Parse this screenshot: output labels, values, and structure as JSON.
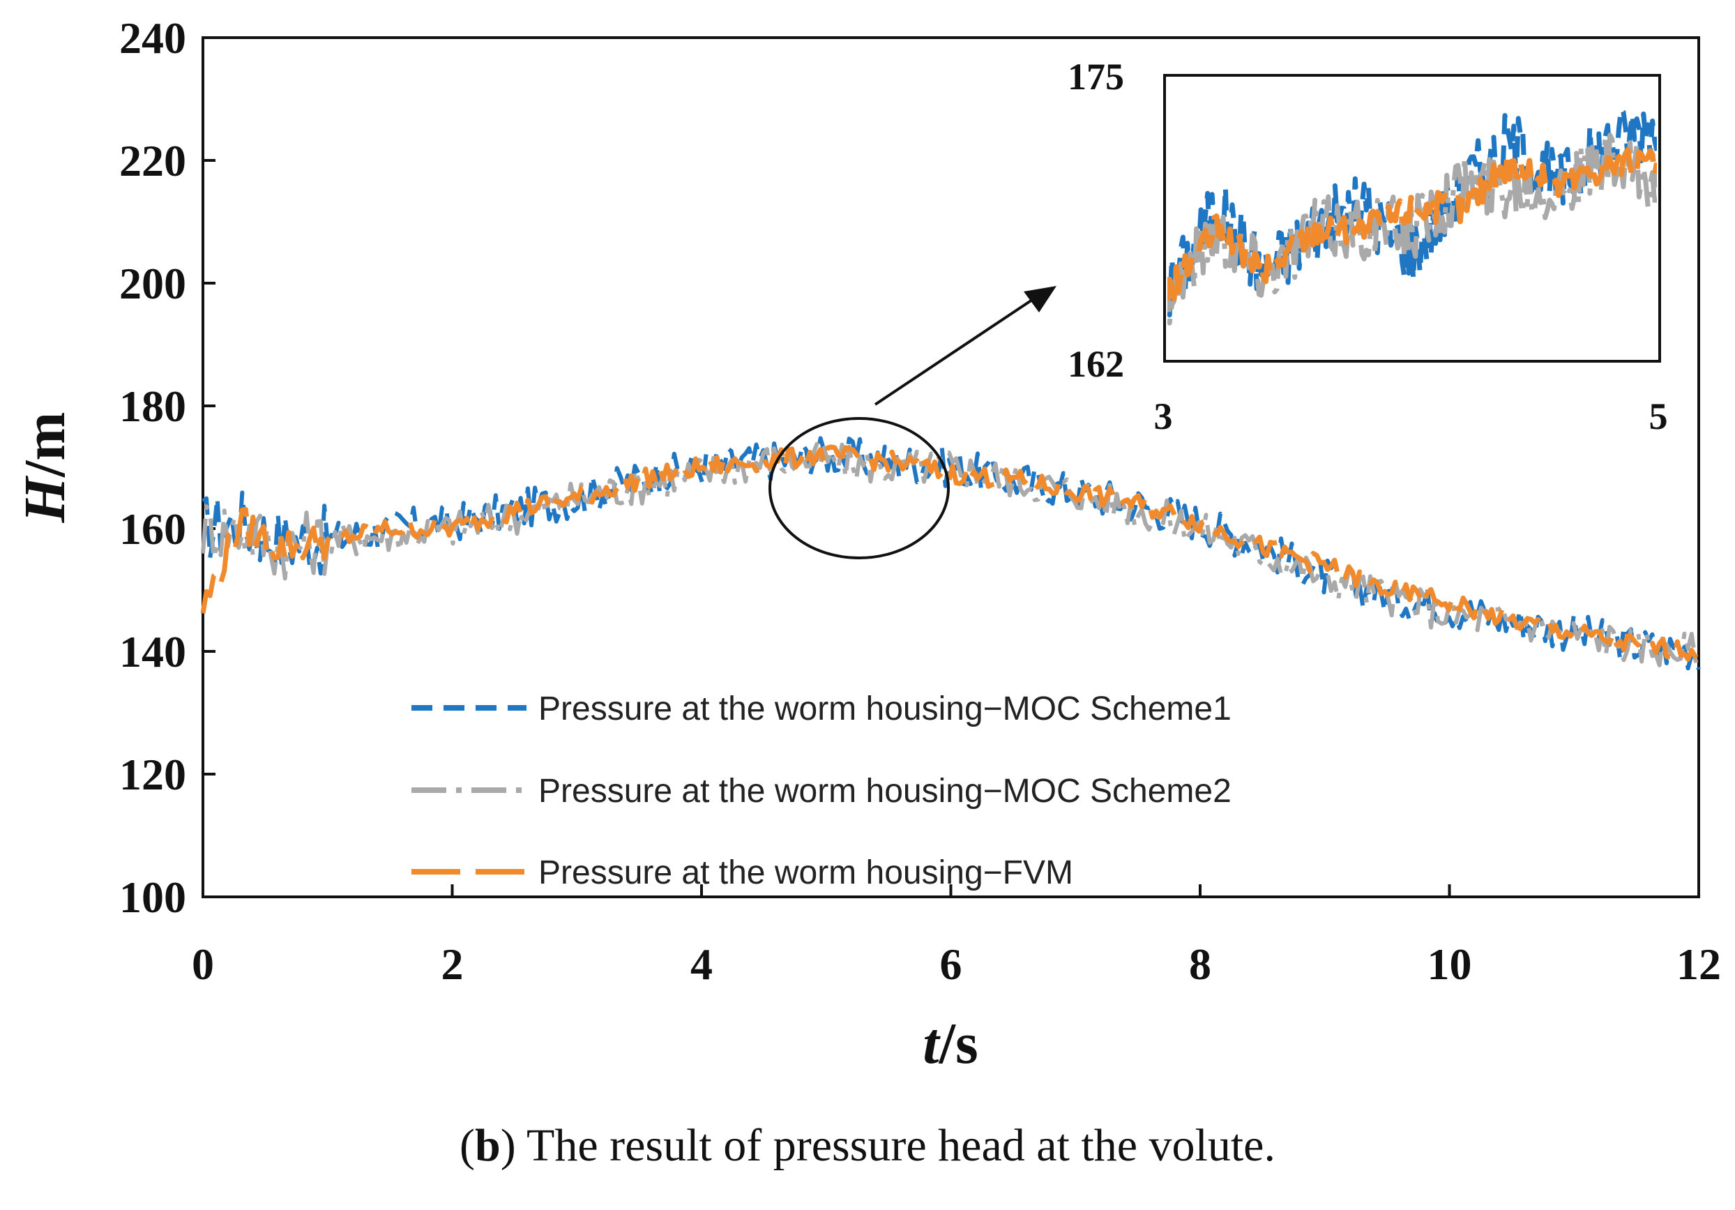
{
  "chart_data": {
    "type": "line",
    "xlabel": "t/s",
    "xlabel_italic": "t",
    "xlabel_rest": "/s",
    "ylabel": "H/m",
    "ylabel_italic": "H",
    "ylabel_rest": "/m",
    "xlim": [
      0,
      12
    ],
    "ylim": [
      100,
      240
    ],
    "xticks": [
      "0",
      "2",
      "4",
      "6",
      "8",
      "10",
      "12"
    ],
    "yticks": [
      "100",
      "120",
      "140",
      "160",
      "180",
      "200",
      "220",
      "240"
    ],
    "grid": false,
    "legend_position": "bottom-left",
    "series": [
      {
        "name": "Pressure at the worm housing−MOC Scheme1",
        "color": "#1f77c4",
        "dash": "dash",
        "x": [
          0,
          0.3,
          0.6,
          1,
          1.5,
          2,
          2.5,
          3,
          3.5,
          4,
          4.5,
          5,
          5.5,
          6,
          6.5,
          7,
          7.5,
          8,
          8.5,
          9,
          9.5,
          10,
          10.5,
          11,
          11.5,
          12
        ],
        "y": [
          160,
          161,
          158,
          158,
          160,
          161,
          163,
          165,
          168,
          170,
          171,
          172,
          171,
          170,
          168,
          166,
          164,
          161,
          157,
          152,
          149,
          147,
          145,
          143,
          141,
          140
        ]
      },
      {
        "name": "Pressure at the worm housing−MOC Scheme2",
        "color": "#a9a9a9",
        "dash": "dashdot",
        "x": [
          0,
          0.3,
          0.6,
          1,
          1.5,
          2,
          2.5,
          3,
          3.5,
          4,
          4.5,
          5,
          5.5,
          6,
          6.5,
          7,
          7.5,
          8,
          8.5,
          9,
          9.5,
          10,
          10.5,
          11,
          11.5,
          12
        ],
        "y": [
          160,
          160,
          157,
          158,
          159,
          160,
          162,
          165,
          167,
          169,
          171,
          171,
          170,
          170,
          168,
          166,
          163,
          160,
          156,
          152,
          149,
          146,
          145,
          143,
          141,
          140
        ]
      },
      {
        "name": "Pressure at the worm housing−FVM",
        "color": "#f08a2c",
        "dash": "longdash",
        "x": [
          0,
          0.3,
          0.6,
          1,
          1.5,
          2,
          2.5,
          3,
          3.5,
          4,
          4.5,
          5,
          5.5,
          6,
          6.5,
          7,
          7.5,
          8,
          8.5,
          9,
          9.5,
          10,
          10.5,
          11,
          11.5,
          12
        ],
        "y": [
          147,
          161,
          157,
          158,
          160,
          160,
          163,
          165,
          168,
          170,
          171,
          172,
          171,
          169,
          168,
          166,
          164,
          161,
          157,
          154,
          150,
          148,
          145,
          143,
          141,
          140
        ]
      }
    ],
    "inset": {
      "xlim": [
        3,
        5
      ],
      "ylim": [
        162,
        175
      ],
      "xtick_labels": [
        "3",
        "5"
      ],
      "ytick_labels": [
        "162",
        "175"
      ],
      "series": [
        {
          "name": "MOC Scheme1",
          "x": [
            3,
            3.2,
            3.4,
            3.6,
            3.8,
            4.0,
            4.2,
            4.4,
            4.6,
            4.8,
            5.0
          ],
          "y": [
            165,
            169,
            166,
            168,
            169,
            167,
            170,
            172,
            170,
            172,
            173
          ]
        },
        {
          "name": "MOC Scheme2",
          "x": [
            3,
            3.2,
            3.4,
            3.6,
            3.8,
            4.0,
            4.2,
            4.4,
            4.6,
            4.8,
            5.0
          ],
          "y": [
            165,
            168,
            166,
            168,
            168,
            168,
            170,
            170,
            170,
            171,
            170
          ]
        },
        {
          "name": "FVM",
          "x": [
            3,
            3.2,
            3.4,
            3.6,
            3.8,
            4.0,
            4.2,
            4.4,
            4.6,
            4.8,
            5.0
          ],
          "y": [
            165,
            168,
            166,
            168,
            168,
            169,
            169,
            171,
            170,
            171,
            171
          ]
        }
      ]
    }
  },
  "caption": {
    "label": "b",
    "text": " The result of pressure head at the volute."
  }
}
